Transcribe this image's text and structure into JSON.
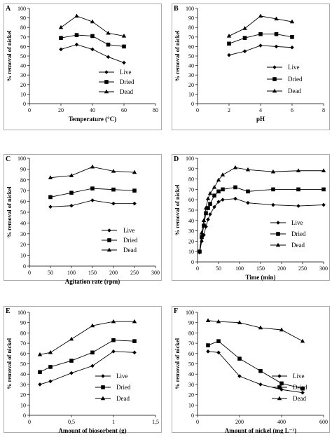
{
  "chart_data": [
    {
      "type": "line",
      "panel_letter": "A",
      "xlabel": "Temperature (°C)",
      "ylabel": "% removal of nickel",
      "xlim": [
        0,
        80
      ],
      "ylim": [
        0,
        100
      ],
      "xticks": [
        "0",
        "20",
        "40",
        "60",
        "80"
      ],
      "yticks": [
        "0",
        "10",
        "20",
        "30",
        "40",
        "50",
        "60",
        "70",
        "80",
        "90",
        "100"
      ],
      "x": [
        20,
        30,
        40,
        50,
        60
      ],
      "series": [
        {
          "name": "Live",
          "marker": "diamond",
          "values": [
            57,
            62,
            57,
            49,
            43
          ]
        },
        {
          "name": "Dried",
          "marker": "square",
          "values": [
            69,
            72,
            71,
            62,
            60
          ]
        },
        {
          "name": "Dead",
          "marker": "triangle",
          "values": [
            80,
            92,
            86,
            74,
            71
          ]
        }
      ]
    },
    {
      "type": "line",
      "panel_letter": "B",
      "xlabel": "pH",
      "ylabel": "% removal of nickel",
      "xlim": [
        0,
        8
      ],
      "ylim": [
        0,
        100
      ],
      "xticks": [
        "0",
        "2",
        "4",
        "6",
        "8"
      ],
      "yticks": [
        "0",
        "10",
        "20",
        "30",
        "40",
        "50",
        "60",
        "70",
        "80",
        "90",
        "100"
      ],
      "x": [
        2,
        3,
        4,
        5,
        6
      ],
      "series": [
        {
          "name": "Live",
          "marker": "diamond",
          "values": [
            51,
            55,
            61,
            60,
            59
          ]
        },
        {
          "name": "Dried",
          "marker": "square",
          "values": [
            63,
            69,
            73,
            73,
            70
          ]
        },
        {
          "name": "Dead",
          "marker": "triangle",
          "values": [
            71,
            79,
            92,
            89,
            86
          ]
        }
      ]
    },
    {
      "type": "line",
      "panel_letter": "C",
      "xlabel": "Agitation rate (rpm)",
      "ylabel": "% removal of nickel",
      "xlim": [
        0,
        300
      ],
      "ylim": [
        0,
        100
      ],
      "xticks": [
        "0",
        "50",
        "100",
        "150",
        "200",
        "250",
        "300"
      ],
      "yticks": [
        "0",
        "10",
        "20",
        "30",
        "40",
        "50",
        "60",
        "70",
        "80",
        "90",
        "100"
      ],
      "x": [
        50,
        100,
        150,
        200,
        250
      ],
      "series": [
        {
          "name": "Live",
          "marker": "diamond",
          "values": [
            55,
            56,
            61,
            58,
            58
          ]
        },
        {
          "name": "Dried",
          "marker": "square",
          "values": [
            64,
            68,
            72,
            71,
            70
          ]
        },
        {
          "name": "Dead",
          "marker": "triangle",
          "values": [
            82,
            84,
            92,
            88,
            87
          ]
        }
      ]
    },
    {
      "type": "line",
      "panel_letter": "D",
      "xlabel": "Time (min)",
      "ylabel": "% removal of nickel",
      "xlim": [
        0,
        300
      ],
      "ylim": [
        0,
        100
      ],
      "xticks": [
        "0",
        "50",
        "100",
        "150",
        "200",
        "250",
        "300"
      ],
      "yticks": [
        "0",
        "10",
        "20",
        "30",
        "40",
        "50",
        "60",
        "70",
        "80",
        "90",
        "100"
      ],
      "x": [
        5,
        10,
        15,
        20,
        25,
        30,
        40,
        50,
        60,
        90,
        120,
        180,
        240,
        300
      ],
      "series": [
        {
          "name": "Live",
          "marker": "diamond",
          "values": [
            9,
            20,
            26,
            34,
            41,
            46,
            53,
            58,
            60,
            61,
            57,
            55,
            54,
            55
          ]
        },
        {
          "name": "Dried",
          "marker": "square",
          "values": [
            10,
            24,
            35,
            47,
            52,
            56,
            64,
            68,
            70,
            72,
            68,
            70,
            70,
            70
          ]
        },
        {
          "name": "Dead",
          "marker": "triangle",
          "values": [
            10,
            28,
            40,
            52,
            61,
            66,
            72,
            79,
            84,
            91,
            89,
            87,
            88,
            88
          ]
        }
      ]
    },
    {
      "type": "line",
      "panel_letter": "E",
      "xlabel": "Amount of biosorbent (g)",
      "ylabel": "% removal of nickel",
      "xlim": [
        0,
        1.5
      ],
      "ylim": [
        0,
        100
      ],
      "xticks": [
        "0",
        "0,5",
        "1",
        "1,5"
      ],
      "yticks": [
        "0",
        "10",
        "20",
        "30",
        "40",
        "50",
        "60",
        "70",
        "80",
        "90",
        "100"
      ],
      "x": [
        0.125,
        0.25,
        0.5,
        0.75,
        1.0,
        1.25
      ],
      "series": [
        {
          "name": "Live",
          "marker": "diamond",
          "values": [
            30,
            33,
            41,
            48,
            62,
            61
          ]
        },
        {
          "name": "Dried",
          "marker": "square",
          "values": [
            42,
            47,
            53,
            61,
            73,
            72
          ]
        },
        {
          "name": "Dead",
          "marker": "triangle",
          "values": [
            59,
            61,
            74,
            87,
            91,
            91
          ]
        }
      ]
    },
    {
      "type": "line",
      "panel_letter": "F",
      "xlabel": "Amount of nickel (mg L⁻¹)",
      "ylabel": "% removal of nickel",
      "xlim": [
        0,
        600
      ],
      "ylim": [
        0,
        100
      ],
      "xticks": [
        "0",
        "200",
        "400",
        "600"
      ],
      "yticks": [
        "0",
        "10",
        "20",
        "30",
        "40",
        "50",
        "60",
        "70",
        "80",
        "90",
        "100"
      ],
      "x": [
        50,
        100,
        200,
        300,
        400,
        500
      ],
      "series": [
        {
          "name": "Live",
          "marker": "diamond",
          "values": [
            62,
            61,
            38,
            30,
            25,
            22
          ]
        },
        {
          "name": "Dried",
          "marker": "square",
          "values": [
            68,
            72,
            55,
            43,
            31,
            26
          ]
        },
        {
          "name": "Dead",
          "marker": "triangle",
          "values": [
            92,
            91,
            90,
            85,
            83,
            72
          ]
        }
      ]
    }
  ]
}
